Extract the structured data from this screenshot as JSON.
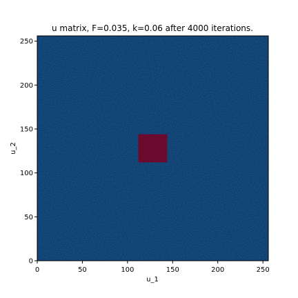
{
  "chart_data": {
    "type": "heatmap",
    "title": "u matrix, F=0.035, k=0.06 after 4000 iterations.",
    "xlabel": "u_1",
    "ylabel": "u_2",
    "xlim": [
      0,
      256
    ],
    "ylim": [
      0,
      256
    ],
    "x_ticks": [
      0,
      50,
      100,
      150,
      200,
      250
    ],
    "y_ticks": [
      0,
      50,
      100,
      150,
      200,
      250
    ],
    "x_tick_labels": [
      "0",
      "50",
      "100",
      "150",
      "200",
      "250"
    ],
    "y_tick_labels": [
      "0",
      "50",
      "100",
      "150",
      "200",
      "250"
    ],
    "background_color": "#083a6b",
    "patch_color": "#6b0a2c",
    "regions": [
      {
        "x0": 0,
        "x1": 256,
        "y0": 0,
        "y1": 256,
        "level": "background"
      },
      {
        "x0": 112,
        "x1": 144,
        "y0": 112,
        "y1": 144,
        "level": "patch"
      }
    ],
    "grid": false,
    "legend": false
  }
}
